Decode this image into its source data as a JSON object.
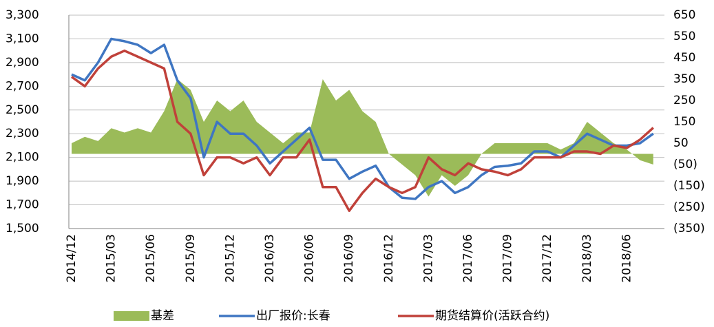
{
  "chart_data": {
    "type": "line",
    "categories": [
      "2014/12",
      null,
      null,
      "2015/03",
      null,
      null,
      "2015/06",
      null,
      null,
      "2015/09",
      null,
      null,
      "2015/12",
      null,
      null,
      "2016/03",
      null,
      null,
      "2016/06",
      null,
      null,
      "2016/09",
      null,
      null,
      "2016/12",
      null,
      null,
      "2017/03",
      null,
      null,
      "2017/06",
      null,
      null,
      "2017/09",
      null,
      null,
      "2017/12",
      null,
      null,
      "2018/03",
      null,
      null,
      "2018/06",
      null,
      null
    ],
    "series": [
      {
        "name": "基差",
        "color": "#9bbb59",
        "axis": "y2",
        "kind": "area",
        "values": [
          50,
          80,
          60,
          120,
          100,
          120,
          100,
          200,
          350,
          300,
          150,
          250,
          200,
          250,
          150,
          100,
          50,
          100,
          100,
          350,
          250,
          300,
          200,
          150,
          0,
          -50,
          -100,
          -200,
          -100,
          -150,
          -100,
          0,
          50,
          50,
          50,
          50,
          50,
          20,
          50,
          150,
          100,
          50,
          20,
          -30,
          -50
        ]
      },
      {
        "name": "出厂报价:长春",
        "color": "#3f76c2",
        "kind": "line",
        "values": [
          2800,
          2750,
          2900,
          3100,
          3080,
          3050,
          2980,
          3050,
          2750,
          2600,
          2100,
          2400,
          2300,
          2300,
          2200,
          2050,
          2150,
          2250,
          2350,
          2080,
          2080,
          1920,
          1980,
          2030,
          1850,
          1760,
          1750,
          1850,
          1900,
          1800,
          1850,
          1950,
          2020,
          2030,
          2050,
          2150,
          2150,
          2100,
          2200,
          2300,
          2250,
          2200,
          2200,
          2220,
          2300
        ]
      },
      {
        "name": "期货结算价(活跃合约)",
        "color": "#c0413a",
        "kind": "line",
        "values": [
          2780,
          2700,
          2850,
          2950,
          3000,
          2950,
          2900,
          2850,
          2400,
          2300,
          1950,
          2100,
          2100,
          2050,
          2100,
          1950,
          2100,
          2100,
          2250,
          1850,
          1850,
          1650,
          1800,
          1920,
          1850,
          1800,
          1850,
          2100,
          2000,
          1950,
          2050,
          2000,
          1980,
          1950,
          2000,
          2100,
          2100,
          2100,
          2150,
          2150,
          2130,
          2200,
          2180,
          2250,
          2350
        ]
      }
    ],
    "ylim": [
      1500,
      3300
    ],
    "yticks": [
      {
        "value": 1500,
        "label": "1,500"
      },
      {
        "value": 1700,
        "label": "1,700"
      },
      {
        "value": 1900,
        "label": "1,900"
      },
      {
        "value": 2100,
        "label": "2,100"
      },
      {
        "value": 2300,
        "label": "2,300"
      },
      {
        "value": 2500,
        "label": "2,500"
      },
      {
        "value": 2700,
        "label": "2,700"
      },
      {
        "value": 2900,
        "label": "2,900"
      },
      {
        "value": 3100,
        "label": "3,100"
      },
      {
        "value": 3300,
        "label": "3,300"
      }
    ],
    "y2lim": [
      -350,
      650
    ],
    "y2ticks": [
      {
        "value": -350,
        "label": "(350)"
      },
      {
        "value": -250,
        "label": "(250)"
      },
      {
        "value": -150,
        "label": "(150)"
      },
      {
        "value": -50,
        "label": "(50)"
      },
      50,
      150,
      250,
      350,
      450,
      550,
      650
    ],
    "grid": true
  }
}
